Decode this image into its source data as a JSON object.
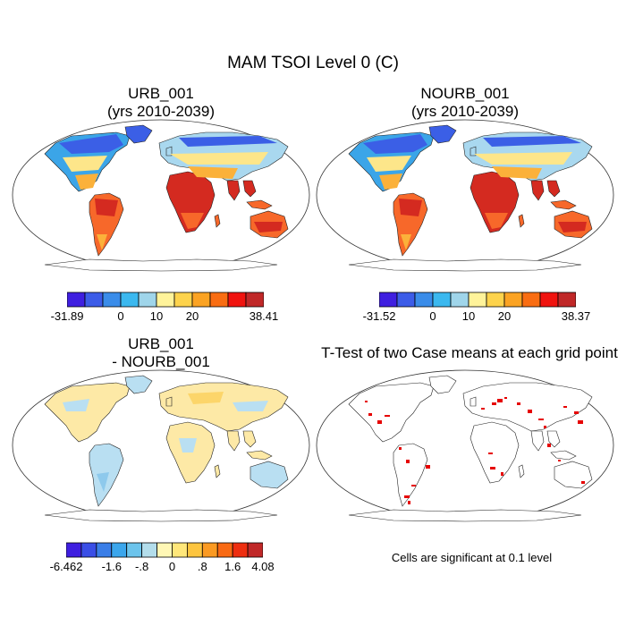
{
  "title": "MAM TSOI Level 0 (C)",
  "panels": [
    {
      "id": "urb",
      "title_line1": "URB_001",
      "title_line2": "(yrs 2010-2039)",
      "style": "abs"
    },
    {
      "id": "nourb",
      "title_line1": "NOURB_001",
      "title_line2": "(yrs 2010-2039)",
      "style": "abs"
    },
    {
      "id": "diff",
      "title_line1": "URB_001",
      "title_line2": "- NOURB_001",
      "style": "diff"
    },
    {
      "id": "ttest",
      "title_line1": "T-Test of two Case means at each grid point",
      "title_line2": "",
      "style": "sig"
    }
  ],
  "colorbars": [
    {
      "id": "cb-urb",
      "colors": [
        "#3f1fe0",
        "#3c5ce8",
        "#3a8ce9",
        "#3bb8ef",
        "#9fd5ea",
        "#fff39a",
        "#fdd34c",
        "#fba323",
        "#f96d12",
        "#f0130f",
        "#c02828"
      ],
      "labels": [
        "-31.89",
        "0",
        "10",
        "20",
        "38.41"
      ],
      "label_positions": [
        0,
        3,
        5,
        7,
        11
      ]
    },
    {
      "id": "cb-nourb",
      "colors": [
        "#3f1fe0",
        "#3c5ce8",
        "#3a8ce9",
        "#3bb8ef",
        "#9fd5ea",
        "#fff39a",
        "#fdd34c",
        "#fba323",
        "#f96d12",
        "#f0130f",
        "#c02828"
      ],
      "labels": [
        "-31.52",
        "0",
        "10",
        "20",
        "38.37"
      ],
      "label_positions": [
        0,
        3,
        5,
        7,
        11
      ]
    },
    {
      "id": "cb-diff",
      "colors": [
        "#3f1fe0",
        "#3a4ee6",
        "#3a7ee8",
        "#3ba6ec",
        "#6cc4ec",
        "#b3ddeb",
        "#fff7b5",
        "#ffe77a",
        "#fdc53f",
        "#fb9a22",
        "#f96a14",
        "#ee2e10",
        "#c02828"
      ],
      "labels": [
        "-6.462",
        "-1.6",
        "-.8",
        "0",
        ".8",
        "1.6",
        "4.08"
      ],
      "label_positions": [
        0,
        3,
        5,
        7,
        9,
        11,
        13
      ]
    }
  ],
  "significance_note": "Cells are significant at 0.1 level",
  "palette": {
    "hot": "#d42a20",
    "warm": "#f7682a",
    "mild": "#fbb13a",
    "temperate": "#fde68a",
    "cool": "#a9d8ef",
    "cold": "#3ba5e8",
    "frigid": "#3b5fe6",
    "polar": "#3f26d8",
    "diff_pos": "#fde9a6",
    "diff_neg": "#b9dff2",
    "sig": "#e60000"
  }
}
